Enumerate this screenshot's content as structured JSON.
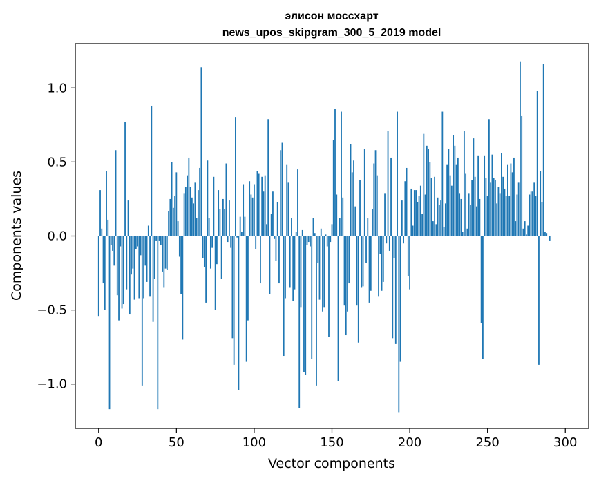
{
  "chart_data": {
    "type": "bar",
    "title_line1": "элисон моссхарт",
    "title_line2": "news_upos_skipgram_300_5_2019 model",
    "xlabel": "Vector components",
    "ylabel": "Components values",
    "xlim": [
      -15,
      315
    ],
    "ylim": [
      -1.3,
      1.3
    ],
    "x_ticks": [
      0,
      50,
      100,
      150,
      200,
      250,
      300
    ],
    "x_tick_labels": [
      "0",
      "50",
      "100",
      "150",
      "200",
      "250",
      "300"
    ],
    "y_ticks": [
      -1.0,
      -0.5,
      0.0,
      0.5,
      1.0
    ],
    "y_tick_labels": [
      "−1.0",
      "−0.5",
      "0.0",
      "0.5",
      "1.0"
    ],
    "bar_color": "#1f77b4",
    "bar_width": 0.8,
    "values": [
      -0.54,
      0.31,
      0.05,
      -0.32,
      -0.5,
      0.44,
      0.11,
      -1.17,
      -0.06,
      -0.1,
      -0.2,
      0.58,
      -0.4,
      -0.57,
      -0.07,
      -0.49,
      -0.46,
      0.77,
      -0.36,
      0.24,
      -0.53,
      -0.26,
      -0.22,
      -0.43,
      -0.09,
      -0.07,
      -0.42,
      -0.13,
      -1.01,
      -0.42,
      -0.2,
      -0.31,
      0.07,
      -0.41,
      0.88,
      -0.58,
      -0.29,
      -0.03,
      -1.17,
      -0.03,
      -0.06,
      -0.24,
      -0.35,
      -0.22,
      -0.23,
      0.17,
      0.25,
      0.5,
      0.19,
      0.27,
      0.43,
      0.1,
      -0.14,
      -0.39,
      -0.7,
      0.29,
      0.33,
      0.41,
      0.53,
      0.33,
      0.26,
      0.22,
      0.36,
      0.12,
      0.31,
      0.46,
      1.14,
      -0.15,
      -0.21,
      -0.45,
      0.51,
      0.12,
      -0.22,
      -0.08,
      0.4,
      -0.5,
      -0.19,
      0.31,
      0.18,
      -0.29,
      0.25,
      0.18,
      0.49,
      -0.04,
      0.24,
      -0.08,
      -0.69,
      -0.87,
      0.8,
      -0.01,
      -1.04,
      0.13,
      0.03,
      0.35,
      0.13,
      -0.85,
      -0.57,
      0.37,
      0.28,
      0.26,
      0.35,
      -0.09,
      0.44,
      0.42,
      -0.32,
      0.4,
      0.3,
      0.41,
      0.08,
      0.79,
      -0.39,
      0.15,
      0.3,
      -0.02,
      -0.17,
      0.23,
      -0.32,
      0.58,
      0.63,
      -0.81,
      -0.42,
      0.48,
      0.36,
      -0.35,
      0.12,
      -0.44,
      -0.36,
      0.03,
      0.45,
      -1.16,
      -0.48,
      0.04,
      -0.92,
      -0.94,
      -0.06,
      -0.04,
      -0.07,
      -0.83,
      0.12,
      0.02,
      -1.01,
      -0.18,
      -0.43,
      0.05,
      -0.51,
      -0.48,
      0.01,
      -0.07,
      -0.68,
      -0.04,
      0.08,
      0.65,
      0.86,
      0.28,
      -0.98,
      0.12,
      0.84,
      0.26,
      -0.47,
      -0.67,
      -0.51,
      -0.32,
      0.62,
      0.43,
      0.51,
      0.2,
      -0.47,
      -0.72,
      0.38,
      -0.35,
      -0.34,
      0.59,
      -0.18,
      0.12,
      -0.45,
      -0.37,
      0.18,
      0.49,
      0.58,
      0.41,
      -0.41,
      -0.12,
      -0.37,
      -0.31,
      0.29,
      -0.05,
      0.71,
      -0.1,
      0.53,
      -0.69,
      -0.15,
      -0.73,
      0.84,
      -1.19,
      -0.85,
      0.24,
      -0.05,
      0.37,
      0.46,
      -0.27,
      -0.36,
      0.32,
      0.07,
      0.31,
      0.31,
      0.23,
      0.27,
      0.34,
      0.15,
      0.69,
      0.28,
      0.61,
      0.59,
      0.5,
      0.39,
      0.1,
      0.4,
      0.08,
      0.26,
      0.21,
      0.24,
      0.84,
      0.06,
      0.22,
      0.48,
      0.59,
      0.41,
      0.34,
      0.68,
      0.61,
      0.48,
      0.53,
      0.29,
      0.25,
      0.03,
      0.71,
      0.42,
      0.05,
      0.29,
      0.21,
      0.38,
      0.66,
      0.4,
      0.2,
      0.54,
      0.25,
      -0.59,
      -0.83,
      0.54,
      0.39,
      0.27,
      0.79,
      0.36,
      0.55,
      0.39,
      0.38,
      0.22,
      0.33,
      0.29,
      0.56,
      0.4,
      0.32,
      0.27,
      0.48,
      0.27,
      0.49,
      0.43,
      0.53,
      0.1,
      0.28,
      0.36,
      1.18,
      0.81,
      0.05,
      0.1,
      0.01,
      0.07,
      0.28,
      0.3,
      0.3,
      0.36,
      0.27,
      0.98,
      -0.87,
      0.44,
      0.23,
      1.16,
      0.03,
      0.02,
      0.0,
      -0.03
    ]
  }
}
